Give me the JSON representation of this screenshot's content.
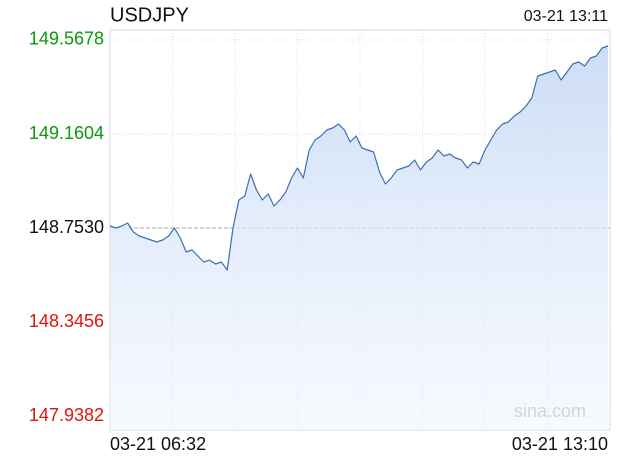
{
  "chart_data": {
    "type": "line",
    "title": "USDJPY",
    "updated": "03-21 13:11",
    "watermark": "sina.com",
    "categories": [
      "03-21 06:32",
      null,
      null,
      null,
      null,
      null,
      null,
      null,
      null,
      null,
      null,
      null,
      null,
      null,
      null,
      null,
      null,
      null,
      null,
      null,
      null,
      null,
      null,
      null,
      null,
      null,
      null,
      null,
      null,
      null,
      null,
      null,
      null,
      null,
      null,
      null,
      null,
      null,
      null,
      null,
      null,
      null,
      null,
      null,
      null,
      null,
      null,
      null,
      null,
      null,
      null,
      null,
      null,
      null,
      null,
      null,
      null,
      null,
      null,
      null,
      null,
      null,
      null,
      null,
      null,
      null,
      null,
      null,
      null,
      null,
      null,
      null,
      null,
      null,
      null,
      null,
      null,
      null,
      null,
      null,
      null,
      null,
      null,
      null,
      null,
      "03-21 13:10"
    ],
    "series": [
      {
        "name": "USDJPY",
        "color": "#3b6fb6",
        "values": [
          148.7617,
          148.753,
          148.7617,
          148.7747,
          148.7357,
          148.7183,
          148.7097,
          148.701,
          148.6923,
          148.701,
          148.7183,
          148.753,
          148.7097,
          148.649,
          148.6577,
          148.6317,
          148.6057,
          148.6143,
          148.597,
          148.6057,
          148.571,
          148.753,
          148.8744,
          148.8917,
          148.987,
          148.9177,
          148.8744,
          148.9004,
          148.8484,
          148.8744,
          148.909,
          148.9697,
          149.013,
          148.9697,
          149.0911,
          149.1344,
          149.1517,
          149.1777,
          149.1864,
          149.2037,
          149.1777,
          149.1257,
          149.1517,
          149.0997,
          149.0911,
          149.0824,
          148.9957,
          148.9437,
          148.9697,
          149.0044,
          149.013,
          149.0217,
          149.0477,
          149.0044,
          149.0391,
          149.0564,
          149.0911,
          149.0651,
          149.0737,
          149.0564,
          149.0477,
          149.013,
          149.0391,
          149.0304,
          149.0911,
          149.1344,
          149.1777,
          149.2037,
          149.2124,
          149.2384,
          149.2558,
          149.2818,
          149.3164,
          149.4118,
          149.4204,
          149.4291,
          149.4378,
          149.3944,
          149.4291,
          149.4638,
          149.4725,
          149.4551,
          149.4898,
          149.4985,
          149.5331,
          149.5418
        ]
      }
    ],
    "ylim": [
      147.878,
      149.611
    ],
    "yticks": [
      149.5678,
      149.1604,
      {
        "value": 148.753,
        "label": "148.7530"
      },
      148.3456,
      147.9382
    ],
    "reference_line": 148.753,
    "up_color": "#0a9a0a",
    "down_color": "#e0140a",
    "grid": true
  }
}
